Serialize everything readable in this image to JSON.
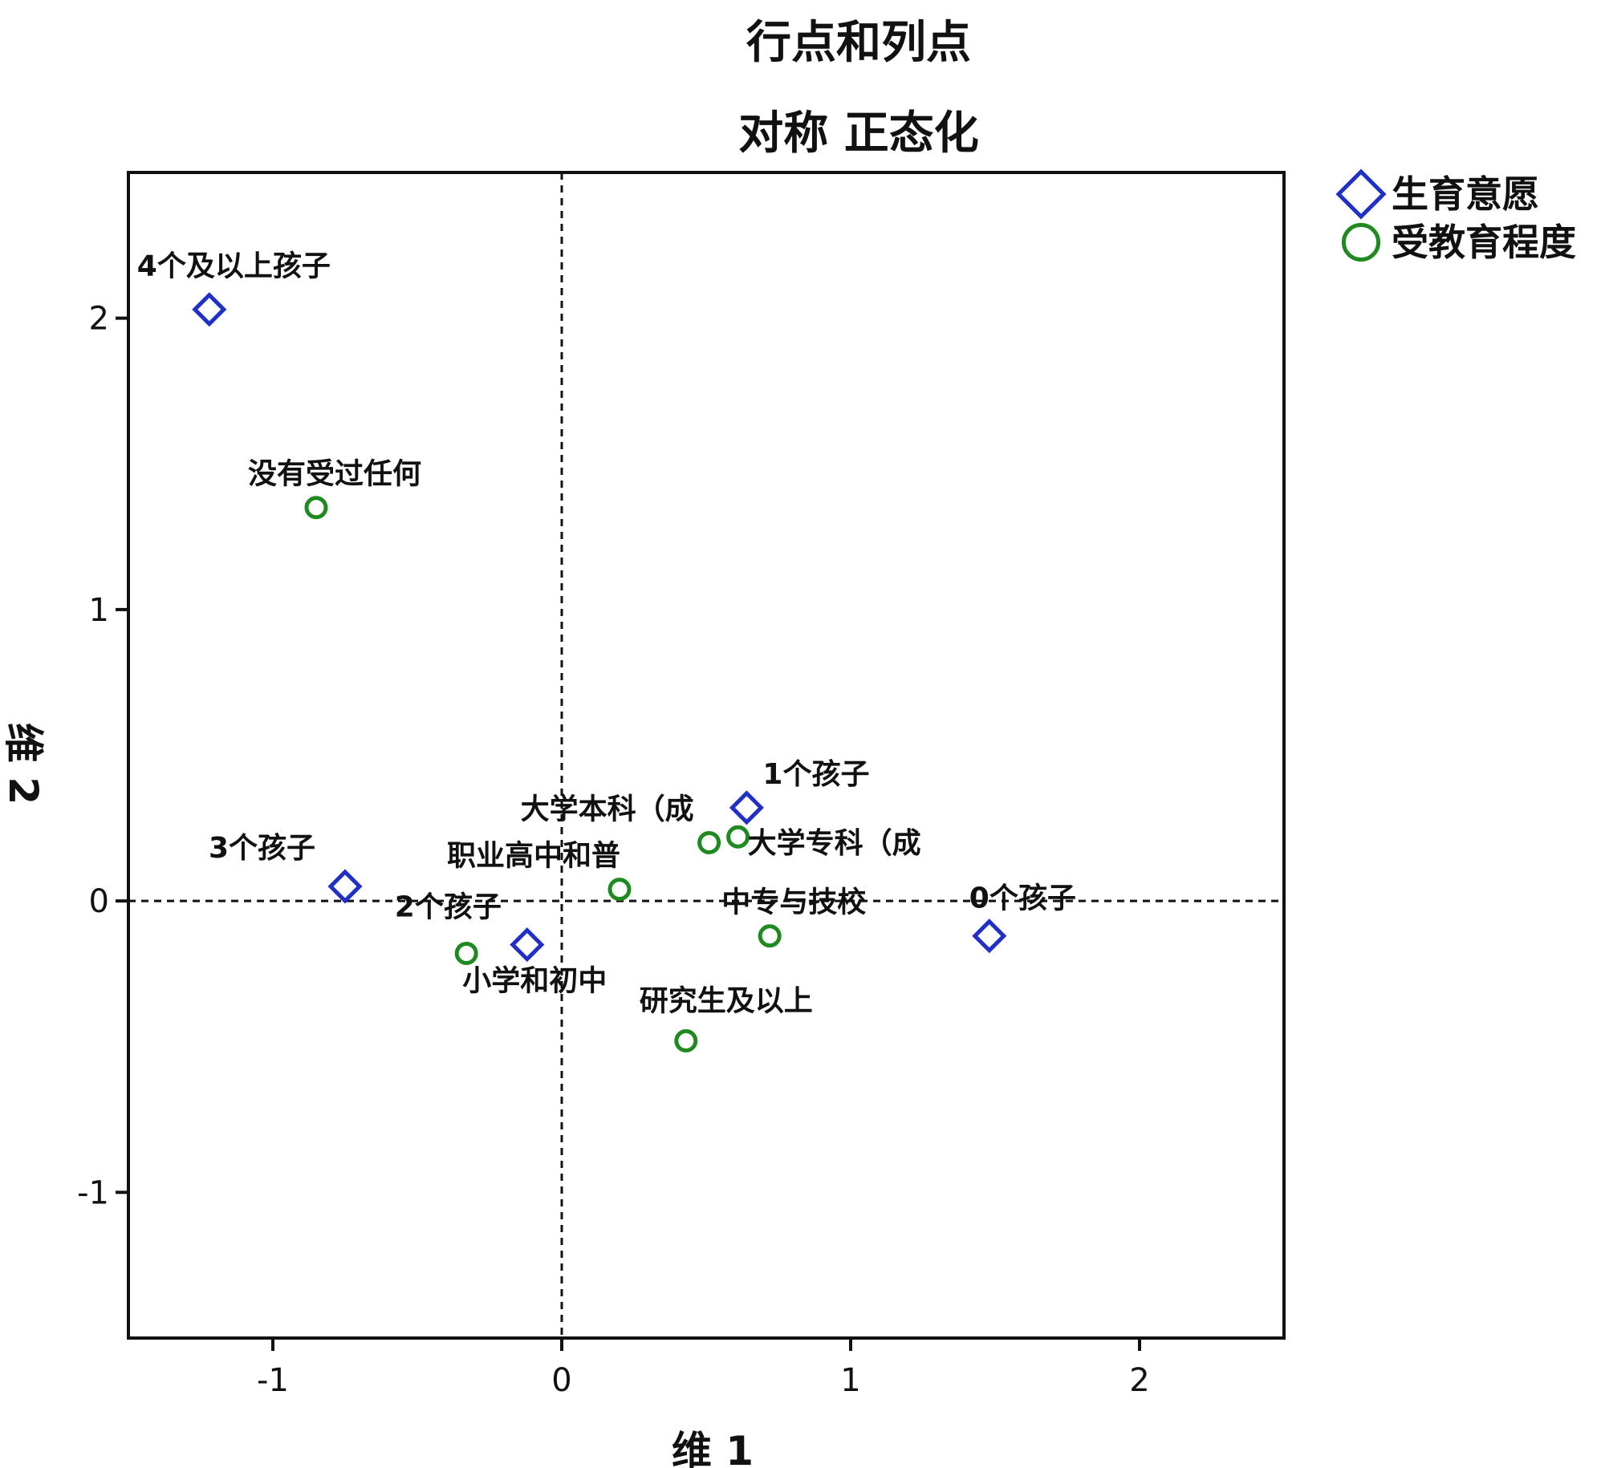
{
  "chart_data": {
    "type": "scatter",
    "title": "行点和列点",
    "subtitle": "对称 正态化",
    "xlabel": "维 1",
    "ylabel": "维 2",
    "xlim": [
      -1.5,
      2.5
    ],
    "ylim": [
      -1.5,
      2.5
    ],
    "xticks": [
      -1,
      0,
      1,
      2
    ],
    "yticks": [
      -1,
      0,
      1,
      2
    ],
    "xtick_labels": [
      "-1",
      "0",
      "1",
      "2"
    ],
    "ytick_labels": [
      "-1",
      "0",
      "1",
      "2"
    ],
    "reference_lines": {
      "x": 0,
      "y": 0,
      "style": "dashed"
    },
    "legend_position": "top-right, outside plot",
    "series": [
      {
        "name": "生育意愿",
        "marker": "diamond",
        "color": "#1f2fc8",
        "points": [
          {
            "label": "4个及以上孩子",
            "x": -1.22,
            "y": 2.03
          },
          {
            "label": "3个孩子",
            "x": -0.75,
            "y": 0.05
          },
          {
            "label": "2个孩子",
            "x": -0.12,
            "y": -0.15
          },
          {
            "label": "1个孩子",
            "x": 0.64,
            "y": 0.32
          },
          {
            "label": "0个孩子",
            "x": 1.48,
            "y": -0.12
          }
        ]
      },
      {
        "name": "受教育程度",
        "marker": "circle",
        "color": "#1f8a1f",
        "points": [
          {
            "label": "没有受过任何",
            "x": -0.85,
            "y": 1.35
          },
          {
            "label": "小学和初中",
            "x": -0.33,
            "y": -0.18
          },
          {
            "label": "职业高中和普",
            "x": 0.2,
            "y": 0.04
          },
          {
            "label": "大学本科（成",
            "x": 0.51,
            "y": 0.2
          },
          {
            "label": "大学专科（成",
            "x": 0.61,
            "y": 0.22
          },
          {
            "label": "中专与技校",
            "x": 0.72,
            "y": -0.12
          },
          {
            "label": "研究生及以上",
            "x": 0.43,
            "y": -0.48
          }
        ]
      }
    ]
  }
}
